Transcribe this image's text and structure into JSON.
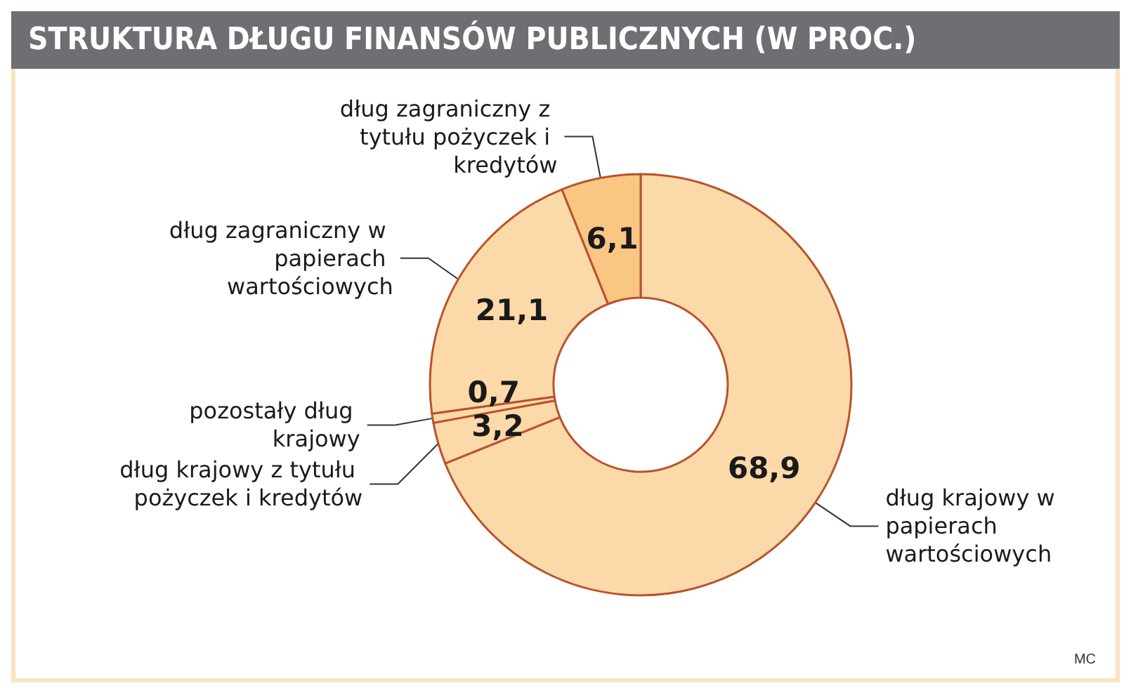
{
  "chart_data": {
    "type": "donut",
    "title": "STRUKTURA DŁUGU FINANSÓW PUBLICZNYCH (W PROC.)",
    "categories": [
      "dług krajowy w papierach wartościowych",
      "dług krajowy z tytułu pożyczek i kredytów",
      "pozostały dług krajowy",
      "dług zagraniczny w papierach wartościowych",
      "dług zagraniczny z tytułu pożyczek i kredytów"
    ],
    "values": [
      68.9,
      3.2,
      0.7,
      21.1,
      6.1
    ],
    "colors": [
      "#fcd9a8",
      "#fcd9a8",
      "#fcd9a8",
      "#fcd9a8",
      "#f9c684"
    ],
    "value_labels": [
      "68,9",
      "3,2",
      "0,7",
      "21,1",
      "6,1"
    ],
    "legend": false,
    "annotations": [
      "MC"
    ]
  }
}
